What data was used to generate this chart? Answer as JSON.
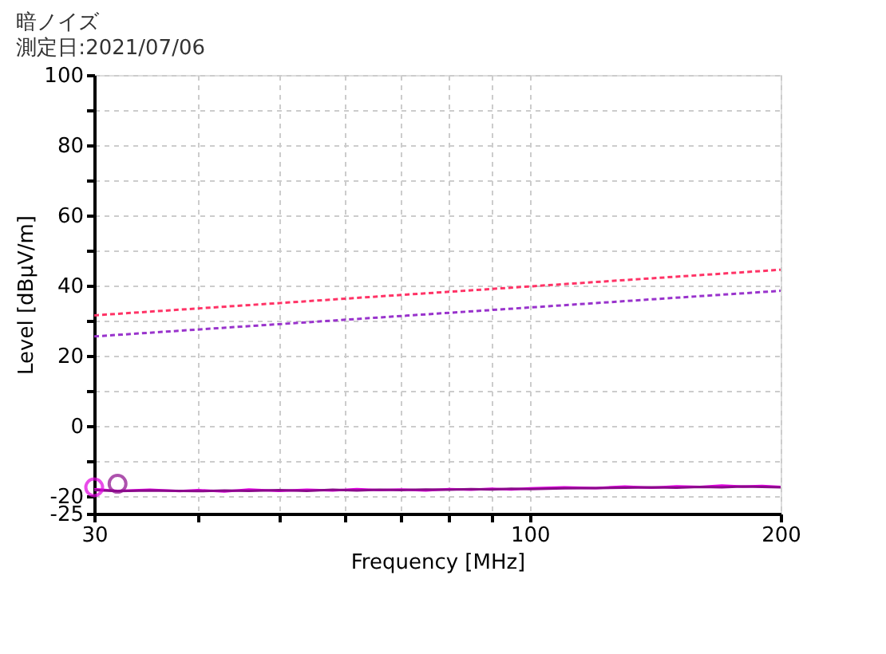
{
  "chart_data": {
    "type": "line",
    "title": "暗ノイズ",
    "subtitle": "測定日:2021/07/06",
    "xlabel": "Frequency [MHz]",
    "ylabel": "Level [dBμV/m]",
    "log": "x",
    "grid": true,
    "legend": false,
    "xlim": [
      30,
      200
    ],
    "xticks": [
      30,
      {
        "value": 40,
        "label": null
      },
      {
        "value": 50,
        "label": null
      },
      {
        "value": 60,
        "label": null
      },
      {
        "value": 70,
        "label": null
      },
      {
        "value": 80,
        "label": null
      },
      {
        "value": 90,
        "label": null
      },
      100,
      200
    ],
    "ylim": [
      -25,
      100
    ],
    "yticks": [
      -25,
      -20,
      {
        "value": -10,
        "label": null
      },
      0,
      {
        "value": 10,
        "label": null
      },
      20,
      {
        "value": 30,
        "label": null
      },
      40,
      {
        "value": 50,
        "label": null
      },
      60,
      {
        "value": 70,
        "label": null
      },
      80,
      {
        "value": 90,
        "label": null
      },
      100
    ],
    "series": [
      {
        "color": "#ff3366",
        "line_style": "dashed",
        "x": [
          30,
          200
        ],
        "values": [
          31.5,
          44.5
        ]
      },
      {
        "color": "#9933cc",
        "line_style": "dashed",
        "x": [
          30,
          200
        ],
        "values": [
          25.5,
          38.5
        ]
      },
      {
        "color": "#e000e0",
        "line_style": "solid",
        "x": [
          30,
          32,
          35,
          38,
          40,
          43,
          46,
          50,
          54,
          58,
          62,
          66,
          70,
          75,
          80,
          85,
          90,
          95,
          100,
          110,
          120,
          130,
          140,
          150,
          160,
          170,
          180,
          190,
          200
        ],
        "values": [
          -18,
          -18.5,
          -18.2,
          -18.6,
          -18.3,
          -18.7,
          -18.1,
          -18.5,
          -18.2,
          -18.4,
          -18,
          -18.3,
          -18.1,
          -18.4,
          -18,
          -18.2,
          -17.9,
          -18.1,
          -17.8,
          -17.5,
          -17.7,
          -17.3,
          -17.6,
          -17.2,
          -17.4,
          -17,
          -17.3,
          -17.1,
          -17.4
        ]
      },
      {
        "color": "#8b0a8b",
        "line_style": "solid",
        "x": [
          30,
          32,
          35,
          38,
          40,
          43,
          46,
          50,
          54,
          58,
          62,
          66,
          70,
          75,
          80,
          85,
          90,
          95,
          100,
          110,
          120,
          130,
          140,
          150,
          160,
          170,
          180,
          190,
          200
        ],
        "values": [
          -18.3,
          -18.6,
          -18.4,
          -18.5,
          -18.6,
          -18.4,
          -18.5,
          -18.3,
          -18.5,
          -18.2,
          -18.4,
          -18.2,
          -18.3,
          -18.1,
          -18.2,
          -18,
          -18.1,
          -17.9,
          -18,
          -17.8,
          -17.7,
          -17.6,
          -17.5,
          -17.6,
          -17.4,
          -17.5,
          -17.3,
          -17.4,
          -17.5
        ]
      },
      {
        "type": "scatter",
        "marker": "circle",
        "color": "#e000e0",
        "x": [
          30
        ],
        "values": [
          -17.5
        ]
      },
      {
        "type": "scatter",
        "marker": "circle",
        "color": "#8b0a8b",
        "x": [
          32
        ],
        "values": [
          -16.5
        ]
      }
    ]
  }
}
